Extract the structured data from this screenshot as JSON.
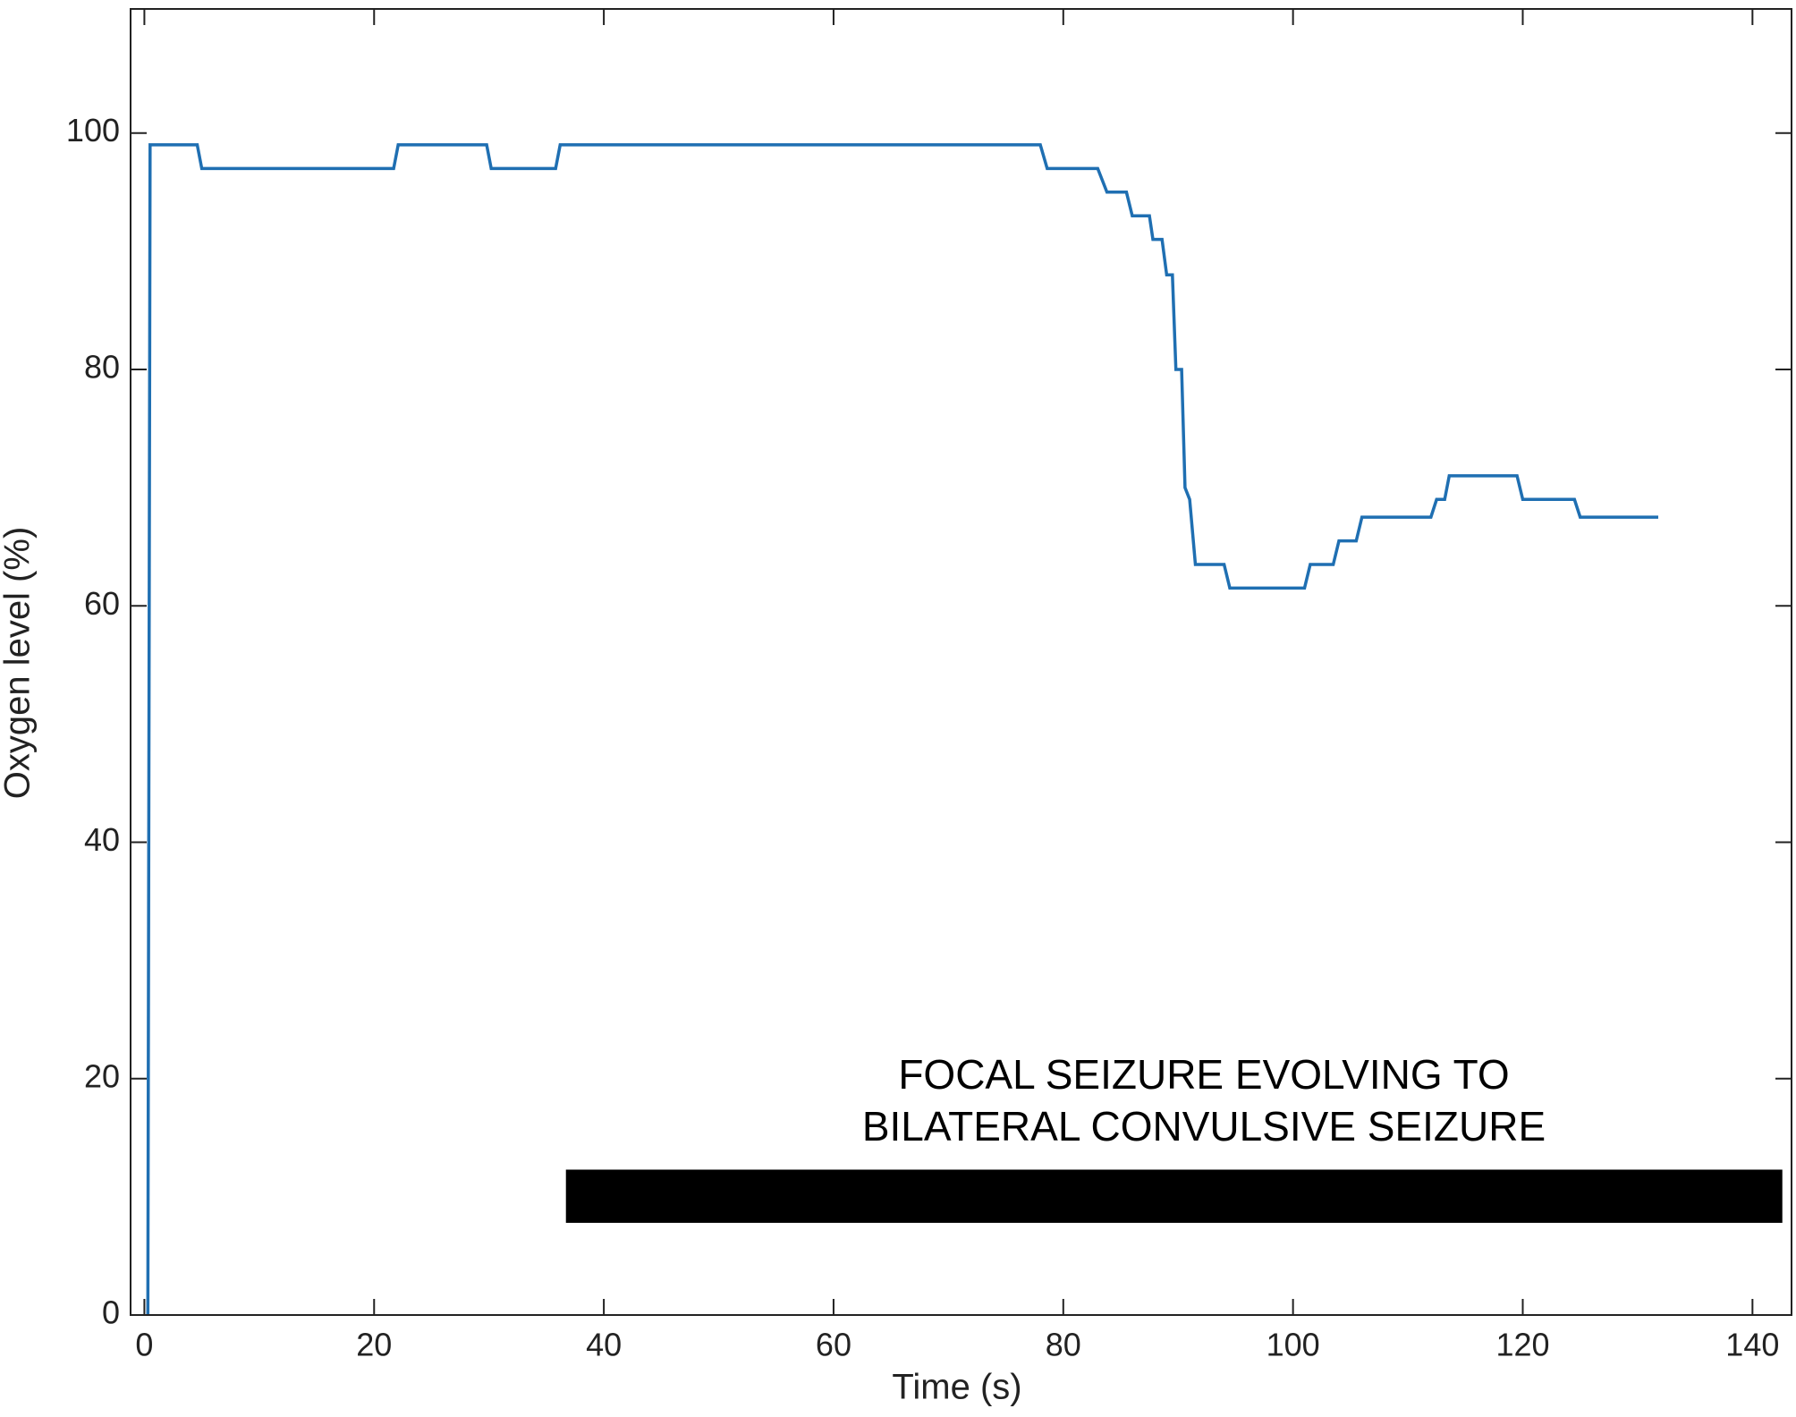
{
  "chart_data": {
    "type": "line",
    "xlabel": "Time (s)",
    "ylabel": "Oxygen level (%)",
    "x": [
      0.3,
      0.5,
      4.6,
      5.0,
      21.7,
      22.1,
      29.8,
      30.2,
      35.8,
      36.2,
      78.0,
      78.6,
      83.0,
      83.8,
      85.5,
      86.0,
      87.5,
      87.8,
      88.6,
      89.0,
      89.5,
      89.8,
      90.3,
      90.6,
      91.0,
      91.5,
      94.0,
      94.5,
      101.0,
      101.5,
      103.5,
      104.0,
      105.5,
      106.0,
      112.0,
      112.5,
      113.2,
      113.6,
      119.5,
      120.0,
      124.5,
      125.0,
      131.8
    ],
    "series": [
      {
        "name": "Oxygen level",
        "color": "#1f6fb2",
        "values": [
          0,
          99,
          99,
          97,
          97,
          99,
          99,
          97,
          97,
          99,
          99,
          97,
          97,
          95,
          95,
          93,
          93,
          91,
          91,
          88,
          88,
          80,
          80,
          70,
          69,
          63.5,
          63.5,
          61.5,
          61.5,
          63.5,
          63.5,
          65.5,
          65.5,
          67.5,
          67.5,
          69,
          69,
          71,
          71,
          69,
          69,
          67.5,
          67.5
        ]
      }
    ],
    "annotation": {
      "lines": [
        "FOCAL SEIZURE EVOLVING TO",
        "BILATERAL CONVULSIVE SEIZURE"
      ],
      "bar_x": [
        36.7,
        142.6
      ],
      "bar_y": [
        7.8,
        12.3
      ],
      "color": "#000000"
    },
    "xlim": [
      -1.2,
      143.4
    ],
    "xticks": [
      0,
      20,
      40,
      60,
      80,
      100,
      120,
      140
    ],
    "ylim": [
      0,
      110.5
    ],
    "yticks": [
      0,
      20,
      40,
      60,
      80,
      100
    ]
  }
}
